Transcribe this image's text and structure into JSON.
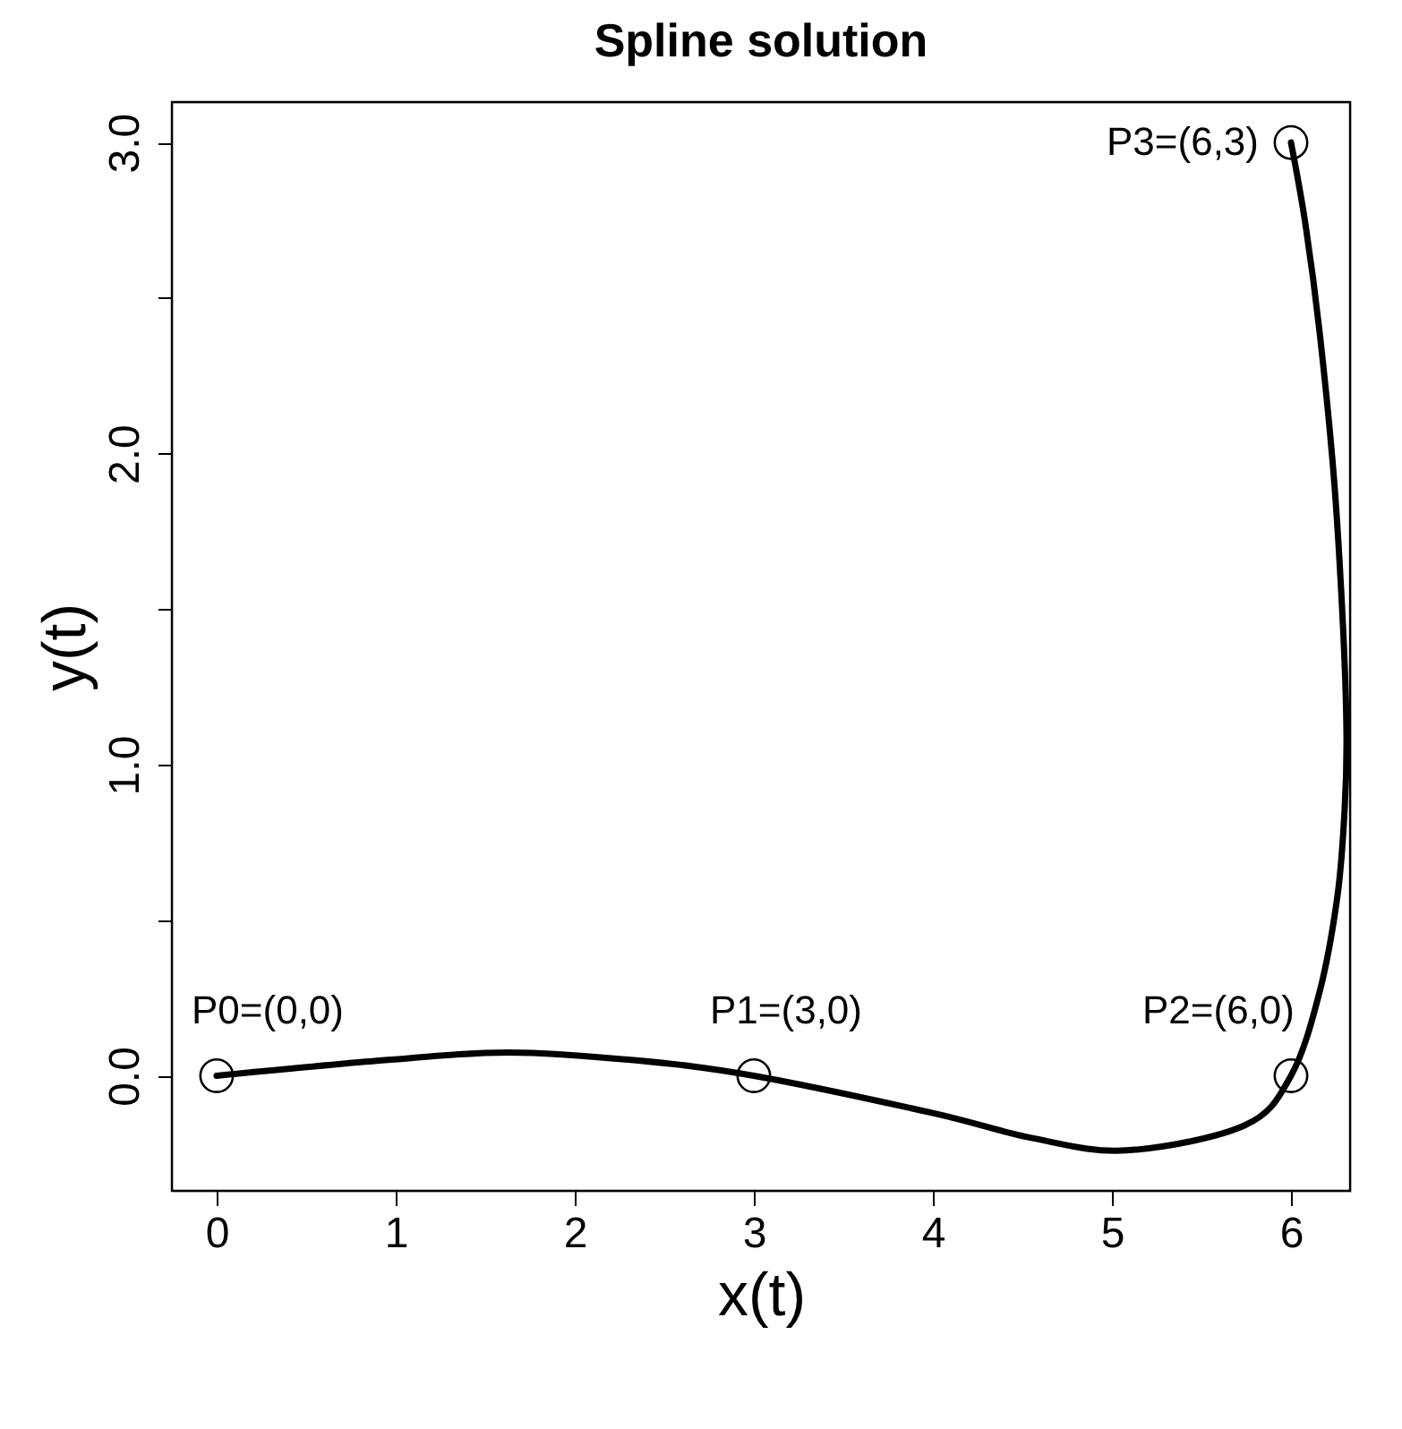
{
  "chart_data": {
    "type": "line",
    "title": "Spline solution",
    "xlabel": "x(t)",
    "ylabel": "y(t)",
    "series": [
      {
        "color": "#000000",
        "line_style": "solid",
        "x": [
          0,
          0.94,
          1.63,
          2.33,
          3,
          4.0,
          4.55,
          5.08,
          5.74,
          6,
          6.16,
          6.26,
          6.3,
          6.31,
          6.29,
          6.24,
          6.16,
          6.08,
          6
        ],
        "values": [
          0,
          0.05,
          0.075,
          0.05,
          0,
          -0.12,
          -0.2,
          -0.24,
          -0.16,
          0,
          0.27,
          0.58,
          0.86,
          1.1,
          1.45,
          1.92,
          2.39,
          2.74,
          3
        ]
      },
      {
        "type": "scatter",
        "color": "#000000",
        "marker": "circle",
        "x": [
          0,
          3,
          6,
          6
        ],
        "values": [
          0,
          0,
          0,
          3
        ]
      }
    ],
    "annotations": [
      {
        "text": "P0=(0,0)",
        "x": 0,
        "y": 0
      },
      {
        "text": "P1=(3,0)",
        "x": 3,
        "y": 0
      },
      {
        "text": "P2=(6,0)",
        "x": 6,
        "y": 0
      },
      {
        "text": "P3=(6,3)",
        "x": 6,
        "y": 3
      }
    ],
    "xlim": [
      -0.25,
      6.33
    ],
    "ylim": [
      -0.37,
      3.13
    ],
    "xticks": [
      0,
      1,
      2,
      3,
      4,
      5,
      6
    ],
    "yticks": [
      {
        "value": 0,
        "label": "0.0"
      },
      {
        "value": 0.5,
        "label": null
      },
      {
        "value": 1,
        "label": "1.0"
      },
      {
        "value": 1.5,
        "label": null
      },
      {
        "value": 2,
        "label": "2.0"
      },
      {
        "value": 2.5,
        "label": null
      },
      {
        "value": 3,
        "label": "3.0"
      }
    ],
    "grid": false
  }
}
